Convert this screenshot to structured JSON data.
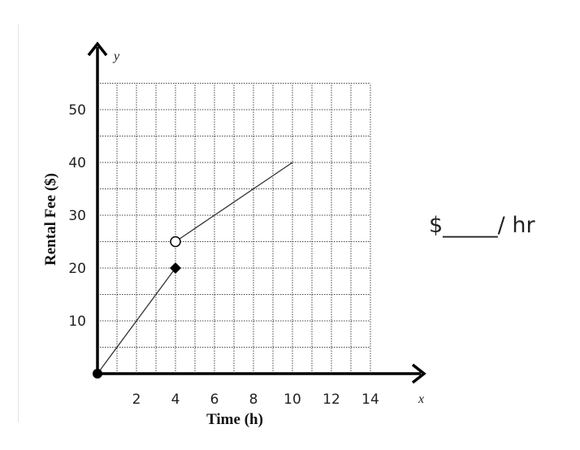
{
  "prompt": {
    "text": "$_____/ hr"
  },
  "chart_data": {
    "type": "line",
    "xlabel": "Time (h)",
    "ylabel": "Rental Fee ($)",
    "x_axis_name": "x",
    "y_axis_name": "y",
    "xlim": [
      0,
      14
    ],
    "ylim": [
      0,
      55
    ],
    "grid": true,
    "x_ticks": [
      2,
      4,
      6,
      8,
      10,
      12,
      14
    ],
    "y_ticks": [
      10,
      20,
      30,
      40,
      50
    ],
    "segments": [
      {
        "points": [
          {
            "x": 0,
            "y": 0
          },
          {
            "x": 4,
            "y": 20
          }
        ],
        "start": "closed",
        "end": "closed"
      },
      {
        "points": [
          {
            "x": 4,
            "y": 25
          },
          {
            "x": 10,
            "y": 40
          }
        ],
        "start": "open",
        "end": "none"
      }
    ]
  }
}
